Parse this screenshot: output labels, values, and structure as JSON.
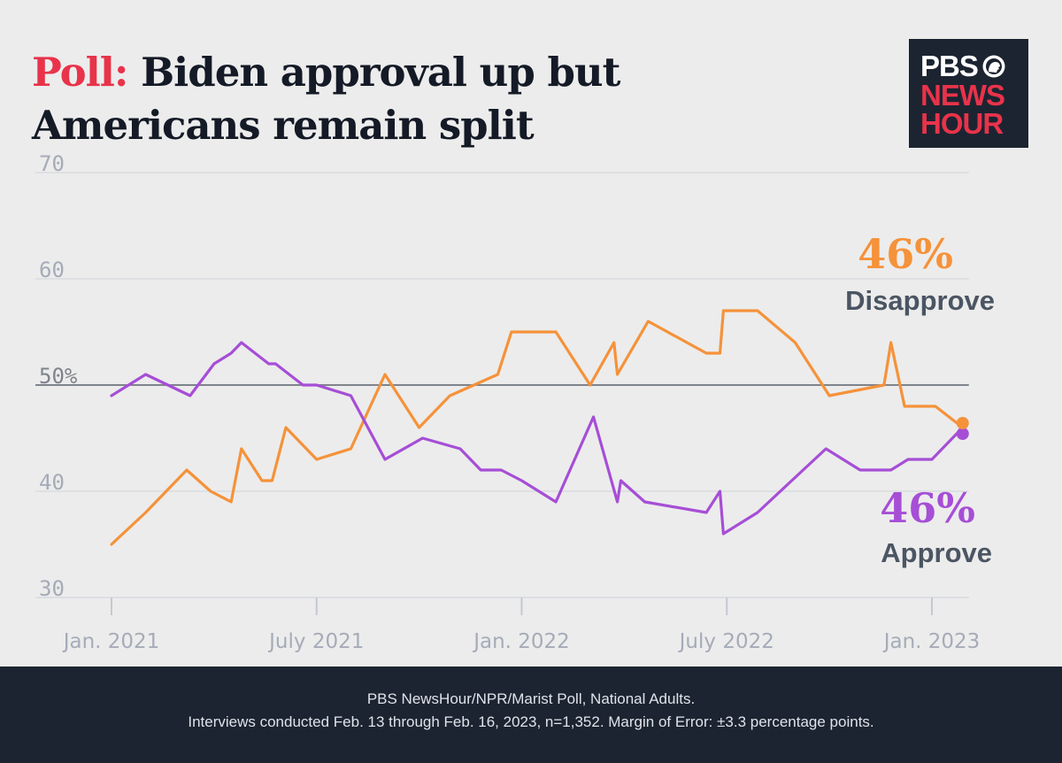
{
  "title": {
    "prefix": "Poll:",
    "line1": "Biden approval up but",
    "line2": "Americans remain split"
  },
  "logo": {
    "line1": "PBS",
    "line2": "NEWS",
    "line3": "HOUR"
  },
  "colors": {
    "approve": "#a64ed6",
    "disapprove": "#f5923a",
    "axis": "#a6abb8",
    "fifty_line": "#7f838b",
    "label_dark": "#4b5563"
  },
  "chart_data": {
    "type": "line",
    "title": "Biden approval up but Americans remain split",
    "xlabel": "",
    "ylabel": "",
    "ylim": [
      30,
      70
    ],
    "xlim": [
      0,
      24.9
    ],
    "yticks": [
      {
        "value": 70,
        "label": "70"
      },
      {
        "value": 60,
        "label": "60"
      },
      {
        "value": 50,
        "label": "50%"
      },
      {
        "value": 40,
        "label": "40"
      },
      {
        "value": 30,
        "label": "30"
      }
    ],
    "xticks": [
      {
        "value": 0,
        "label": "Jan. 2021"
      },
      {
        "value": 6,
        "label": "July 2021"
      },
      {
        "value": 12,
        "label": "Jan. 2022"
      },
      {
        "value": 18,
        "label": "July 2022"
      },
      {
        "value": 24,
        "label": "Jan. 2023"
      }
    ],
    "series": [
      {
        "name": "Disapprove",
        "x": [
          0,
          1,
          2.2,
          2.9,
          3.5,
          3.8,
          4.4,
          4.6,
          4.7,
          5.1,
          6,
          7,
          8,
          9.0,
          9.9,
          11.3,
          11.7,
          13.0,
          14.0,
          14.7,
          14.8,
          15.7,
          17.4,
          17.8,
          17.9,
          18.9,
          20.0,
          21.0,
          22.6,
          22.8,
          23.2,
          23.5,
          24.1,
          24.9
        ],
        "values": [
          35,
          38,
          42,
          40,
          39,
          44,
          41,
          41,
          41,
          46,
          43,
          44,
          51,
          46,
          49,
          51,
          55,
          55,
          50,
          54,
          51,
          56,
          53,
          53,
          57,
          57,
          54,
          49,
          50,
          54,
          48,
          48,
          48,
          46
        ]
      },
      {
        "name": "Approve",
        "x": [
          0,
          1,
          2.3,
          3.0,
          3.5,
          3.8,
          4.2,
          4.6,
          4.8,
          5.0,
          5.6,
          6.0,
          7.0,
          8.0,
          9.1,
          10.2,
          10.8,
          11.4,
          12.0,
          13.0,
          14.1,
          14.8,
          14.9,
          15.6,
          17.4,
          17.8,
          17.9,
          18.9,
          19.9,
          20.9,
          21.9,
          22.8,
          23.3,
          24.0,
          24.9
        ],
        "values": [
          49,
          51,
          49,
          52,
          53,
          54,
          53,
          52,
          52,
          51.5,
          50,
          50,
          49,
          43,
          45,
          44,
          42,
          42,
          41,
          39,
          47,
          39,
          41,
          39,
          38,
          40,
          36,
          38,
          41,
          44,
          42,
          42,
          43,
          43,
          46
        ]
      }
    ],
    "annotations": [
      {
        "series": "Disapprove",
        "value": "46%",
        "label": "Disapprove"
      },
      {
        "series": "Approve",
        "value": "46%",
        "label": "Approve"
      }
    ]
  },
  "footer": {
    "line1": "PBS NewsHour/NPR/Marist Poll, National Adults.",
    "line2": "Interviews conducted Feb. 13 through Feb. 16, 2023, n=1,352. Margin of Error: ±3.3 percentage points."
  }
}
